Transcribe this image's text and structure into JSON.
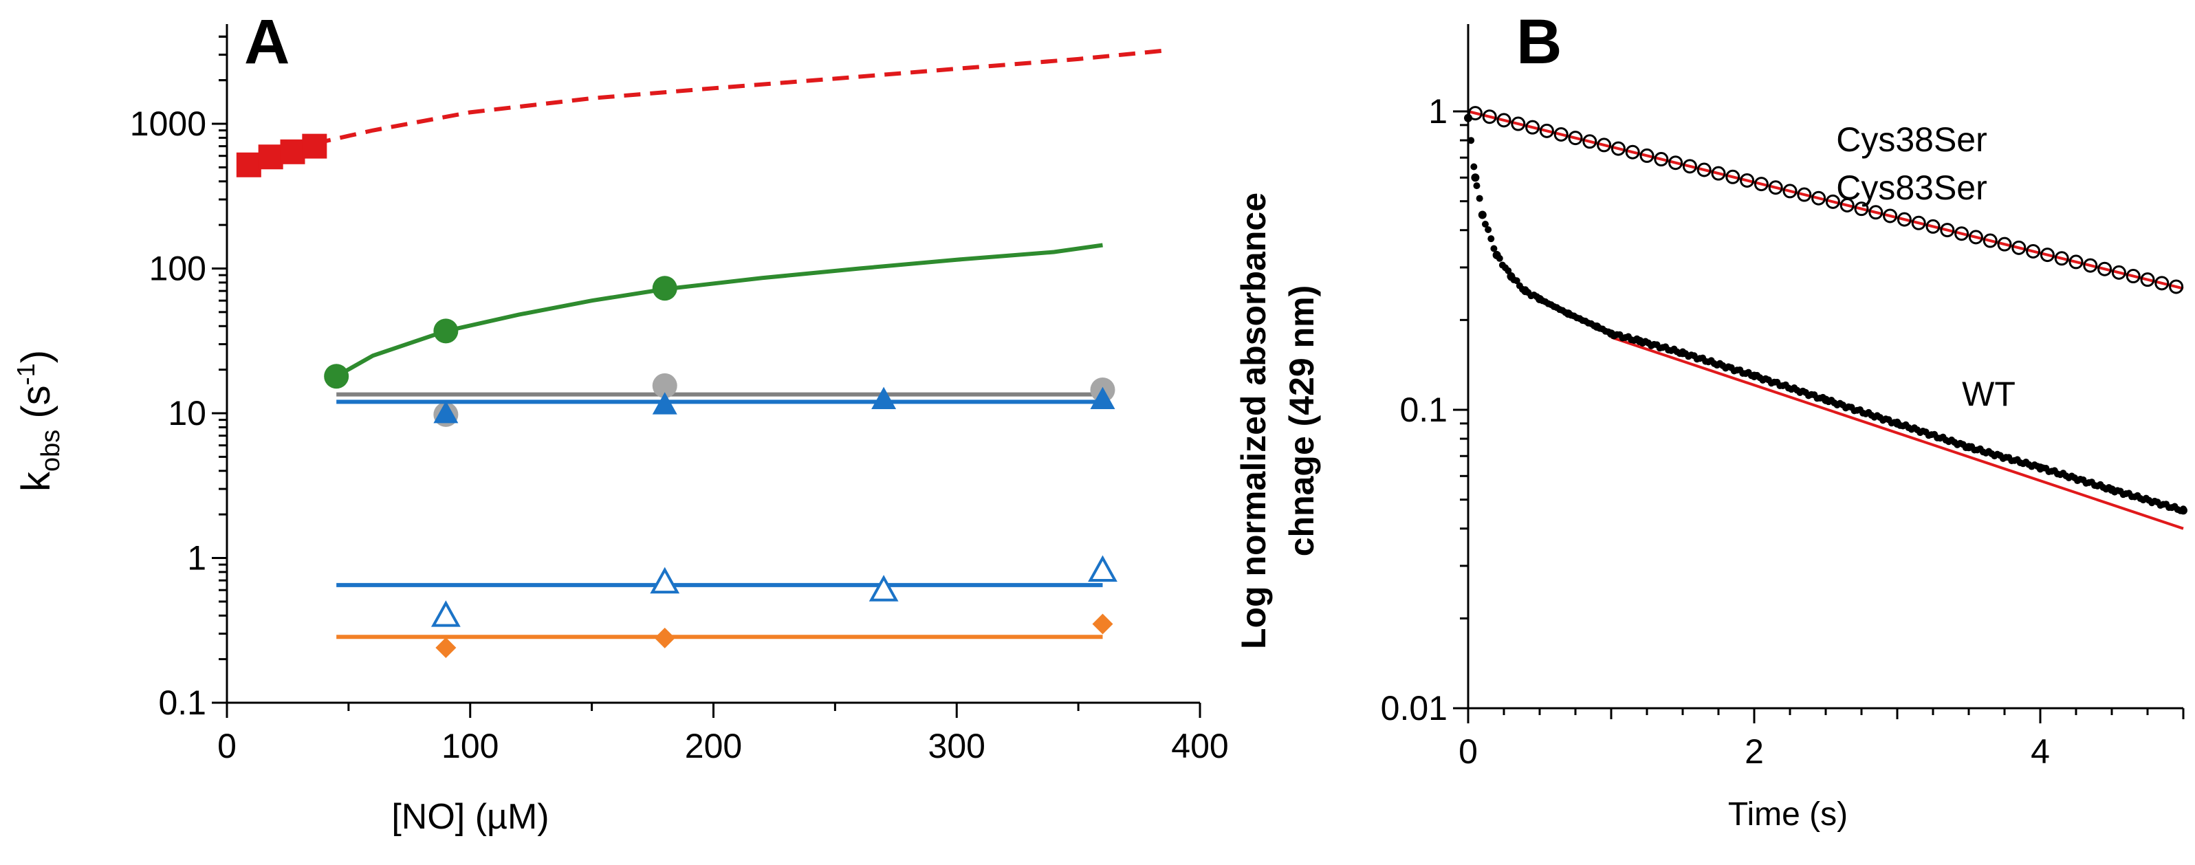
{
  "chart_data": [
    {
      "panel": "A",
      "type": "scatter",
      "xlabel": "[NO] (µM)",
      "ylabel_main": "k",
      "ylabel_sub": "obs",
      "ylabel_unit_open": " (s",
      "ylabel_unit_sup": "-1",
      "ylabel_unit_close": ")",
      "xlim": [
        0,
        400
      ],
      "ylim": [
        0.1,
        5000
      ],
      "yscale": "log",
      "x_ticks": [
        0,
        100,
        200,
        300,
        400
      ],
      "x_tick_labels": [
        "0",
        "100",
        "200",
        "300",
        "400"
      ],
      "y_ticks": [
        0.1,
        1,
        10,
        100,
        1000
      ],
      "y_tick_labels": [
        "0.1",
        "1",
        "10",
        "100",
        "1000"
      ],
      "grid": false,
      "legend": "none",
      "series": [
        {
          "marker": "square-filled",
          "color": "#e0191b",
          "x": [
            9,
            18,
            27,
            36
          ],
          "y": [
            520,
            590,
            640,
            700
          ],
          "fit": {
            "style": "dashed",
            "x": [
              36,
              60,
              100,
              150,
              200,
              250,
              300,
              350,
              385
            ],
            "y": [
              730,
              900,
              1200,
              1500,
              1760,
              2050,
              2400,
              2800,
              3200
            ]
          }
        },
        {
          "marker": "circle-filled",
          "color": "#2e8b2e",
          "x": [
            45,
            90,
            180
          ],
          "y": [
            18,
            37,
            73
          ],
          "fit": {
            "style": "solid",
            "x": [
              45,
              60,
              90,
              120,
              150,
              180,
              220,
              260,
              300,
              340,
              360
            ],
            "y": [
              18,
              25,
              37,
              48,
              60,
              72,
              86,
              100,
              115,
              130,
              145
            ]
          }
        },
        {
          "marker": "circle-filled",
          "color": "#a6a6a6",
          "x": [
            90,
            180,
            360
          ],
          "y": [
            9.8,
            15.5,
            14.5
          ],
          "fit": {
            "style": "solid",
            "color": "#808080",
            "x": [
              45,
              360
            ],
            "y": [
              13.5,
              13.5
            ]
          }
        },
        {
          "marker": "triangle-filled",
          "color": "#1b73c7",
          "x": [
            90,
            180,
            270,
            360
          ],
          "y": [
            10,
            11.5,
            12.5,
            12.5
          ],
          "fit": {
            "style": "solid",
            "x": [
              45,
              360
            ],
            "y": [
              12,
              12
            ]
          }
        },
        {
          "marker": "triangle-open",
          "color": "#1b73c7",
          "x": [
            90,
            180,
            270,
            360
          ],
          "y": [
            0.4,
            0.68,
            0.6,
            0.82
          ],
          "fit": {
            "style": "solid",
            "x": [
              45,
              360
            ],
            "y": [
              0.65,
              0.65
            ]
          }
        },
        {
          "marker": "diamond-filled",
          "color": "#f28026",
          "x": [
            90,
            180,
            360
          ],
          "y": [
            0.24,
            0.28,
            0.35
          ],
          "fit": {
            "style": "solid",
            "x": [
              45,
              360
            ],
            "y": [
              0.285,
              0.285
            ]
          }
        }
      ]
    },
    {
      "panel": "B",
      "type": "scatter",
      "xlabel": "Time (s)",
      "ylabel_line1": "Log normalized absorbance",
      "ylabel_line2": "chnage (429 nm)",
      "xlim": [
        0,
        5
      ],
      "ylim": [
        0.01,
        2
      ],
      "yscale": "log",
      "x_ticks": [
        0,
        2,
        4
      ],
      "x_tick_labels": [
        "0",
        "2",
        "4"
      ],
      "y_ticks": [
        0.01,
        0.1,
        1
      ],
      "y_tick_labels": [
        "0.01",
        "0.1",
        "1"
      ],
      "grid": false,
      "legend": "none",
      "series": [
        {
          "label": "Cys38Ser",
          "label2": "Cys83Ser",
          "marker": "circle-open",
          "color": "#000000",
          "decay": {
            "y0": 1.0,
            "y5": 0.255,
            "t_start": 0.05,
            "t_end": 5.0,
            "step": 0.1
          },
          "fit_color": "#e0191b"
        },
        {
          "label": "WT",
          "marker": "dot",
          "color": "#000000",
          "x": [
            0,
            0.05,
            0.1,
            0.2,
            0.3,
            0.4,
            0.5,
            0.7,
            0.9,
            1.0,
            1.2,
            1.5,
            2.0,
            2.5,
            3.0,
            3.5,
            4.0,
            4.5,
            5.0
          ],
          "y": [
            0.95,
            0.6,
            0.45,
            0.33,
            0.28,
            0.25,
            0.235,
            0.21,
            0.19,
            0.18,
            0.17,
            0.155,
            0.13,
            0.108,
            0.09,
            0.075,
            0.064,
            0.054,
            0.046
          ],
          "fit": {
            "color": "#e0191b",
            "x": [
              1.0,
              5.0
            ],
            "y": [
              0.175,
              0.04
            ]
          }
        }
      ]
    }
  ]
}
